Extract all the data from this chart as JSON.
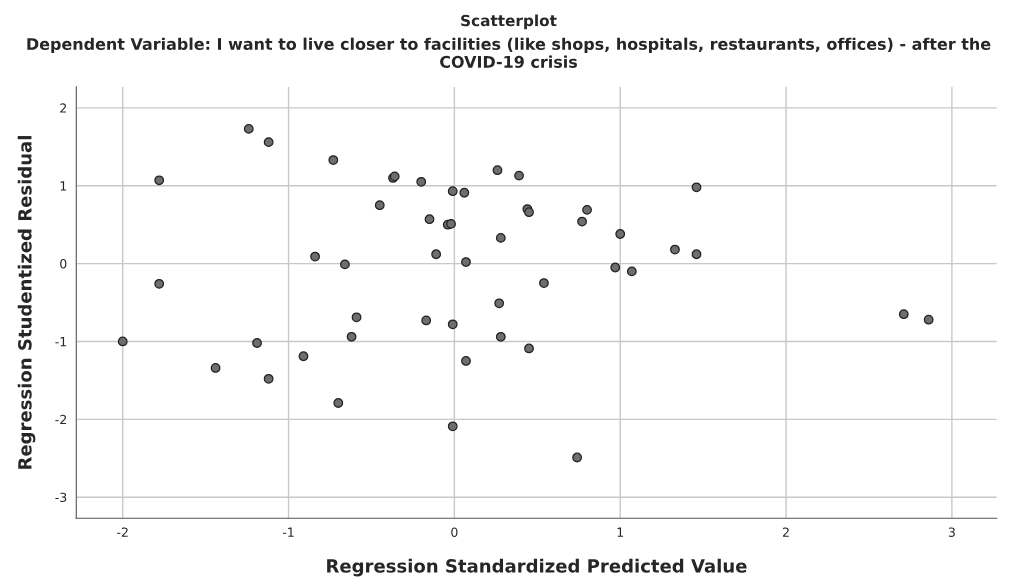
{
  "chart_data": {
    "type": "scatter",
    "title": "Scatterplot",
    "subtitle": "Dependent Variable: I want to live closer to facilities (like shops, hospitals, restaurants, offices) - after the COVID-19 crisis",
    "xlabel": "Regression Standardized Predicted Value",
    "ylabel": "Regression Studentized Residual",
    "series": [
      {
        "color": "#6e6e6e",
        "x": [
          -1.24,
          -1.12,
          -0.73,
          -1.78,
          -0.37,
          -0.36,
          -0.2,
          -0.01,
          0.06,
          0.26,
          0.39,
          -0.45,
          -0.15,
          -0.04,
          -0.02,
          0.44,
          0.45,
          0.28,
          -0.84,
          -0.66,
          -0.11,
          0.07,
          -1.78,
          0.27,
          -0.59,
          -0.17,
          -0.01,
          -0.62,
          0.28,
          -2.0,
          -1.19,
          0.45,
          -0.91,
          -1.44,
          0.07,
          -1.12,
          -0.7,
          -0.01,
          1.46,
          1.33,
          1.46,
          1.0,
          0.97,
          1.07,
          0.77,
          0.8,
          0.54,
          0.74,
          2.71,
          2.86
        ],
        "values": [
          1.73,
          1.56,
          1.33,
          1.07,
          1.1,
          1.12,
          1.05,
          0.93,
          0.91,
          1.2,
          1.13,
          0.75,
          0.57,
          0.5,
          0.51,
          0.7,
          0.66,
          0.33,
          0.09,
          -0.01,
          0.12,
          0.02,
          -0.26,
          -0.51,
          -0.69,
          -0.73,
          -0.78,
          -0.94,
          -0.94,
          -1.0,
          -1.02,
          -1.09,
          -1.19,
          -1.34,
          -1.25,
          -1.48,
          -1.79,
          -2.09,
          0.98,
          0.18,
          0.12,
          0.38,
          -0.05,
          -0.1,
          0.54,
          0.69,
          -0.25,
          -2.49,
          -0.65,
          -0.72
        ]
      }
    ],
    "xlim": [
      -2.28,
      3.27
    ],
    "ylim": [
      -3.27,
      2.27
    ],
    "xticks": [
      -2,
      -1,
      0,
      1,
      2,
      3
    ],
    "yticks": [
      -3,
      -2,
      -1,
      0,
      1,
      2
    ],
    "grid": true,
    "marker": "circle",
    "legend": false
  }
}
